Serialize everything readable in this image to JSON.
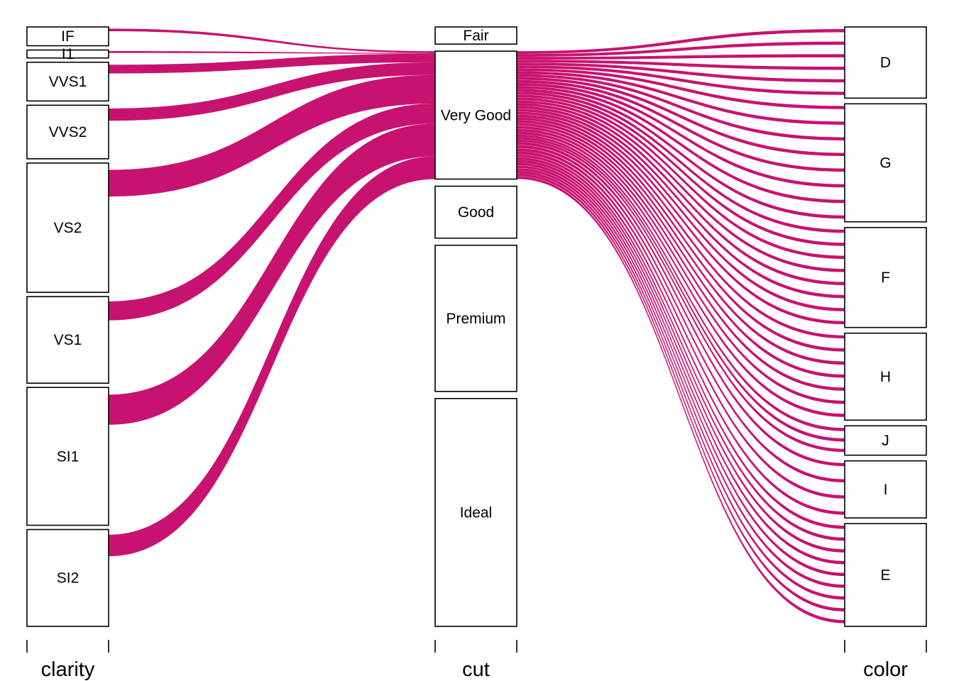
{
  "chart_data": {
    "type": "alluvial",
    "highlight_color": "#c8126f",
    "highlighted_category": "Very Good",
    "axes": [
      {
        "name": "clarity",
        "title": "clarity",
        "categories": [
          {
            "label": "IF",
            "weight": 3.3
          },
          {
            "label": "I1",
            "weight": 1.4
          },
          {
            "label": "VVS1",
            "weight": 6.8
          },
          {
            "label": "VVS2",
            "weight": 9.4
          },
          {
            "label": "VS2",
            "weight": 22.7
          },
          {
            "label": "VS1",
            "weight": 15.2
          },
          {
            "label": "SI1",
            "weight": 24.2
          },
          {
            "label": "SI2",
            "weight": 17.0
          }
        ]
      },
      {
        "name": "cut",
        "title": "cut",
        "categories": [
          {
            "label": "Fair",
            "weight": 3.0
          },
          {
            "label": "Very Good",
            "weight": 22.4
          },
          {
            "label": "Good",
            "weight": 9.1
          },
          {
            "label": "Premium",
            "weight": 25.6
          },
          {
            "label": "Ideal",
            "weight": 39.9
          }
        ]
      },
      {
        "name": "color",
        "title": "color",
        "categories": [
          {
            "label": "D",
            "weight": 12.6
          },
          {
            "label": "G",
            "weight": 20.9
          },
          {
            "label": "F",
            "weight": 17.7
          },
          {
            "label": "H",
            "weight": 15.4
          },
          {
            "label": "J",
            "weight": 5.2
          },
          {
            "label": "I",
            "weight": 10.1
          },
          {
            "label": "E",
            "weight": 18.2
          }
        ]
      }
    ],
    "flows_left": [
      {
        "from": "IF",
        "to": "Very Good",
        "value": 0.3
      },
      {
        "from": "I1",
        "to": "Very Good",
        "value": 0.15
      },
      {
        "from": "VVS1",
        "to": "Very Good",
        "value": 1.5
      },
      {
        "from": "VVS2",
        "to": "Very Good",
        "value": 2.2
      },
      {
        "from": "VS2",
        "to": "Very Good",
        "value": 5.0
      },
      {
        "from": "VS1",
        "to": "Very Good",
        "value": 3.5
      },
      {
        "from": "SI1",
        "to": "Very Good",
        "value": 5.7
      },
      {
        "from": "SI2",
        "to": "Very Good",
        "value": 4.0
      }
    ],
    "flows_right": [
      {
        "from": "Very Good",
        "to": "D",
        "value": 3.0
      },
      {
        "from": "Very Good",
        "to": "G",
        "value": 4.1
      },
      {
        "from": "Very Good",
        "to": "F",
        "value": 4.0
      },
      {
        "from": "Very Good",
        "to": "H",
        "value": 3.5
      },
      {
        "from": "Very Good",
        "to": "J",
        "value": 1.3
      },
      {
        "from": "Very Good",
        "to": "I",
        "value": 2.2
      },
      {
        "from": "Very Good",
        "to": "E",
        "value": 4.3
      }
    ]
  }
}
